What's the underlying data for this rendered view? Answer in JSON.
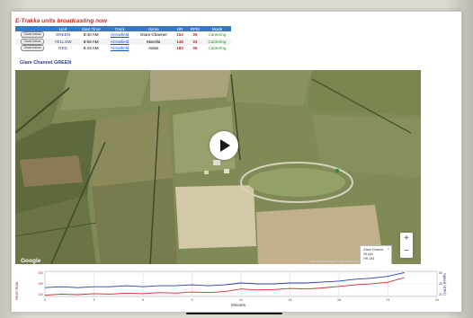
{
  "title": "E-Trakka units broadcasting now",
  "table": {
    "headers": [
      "Unit",
      "Start Time",
      "Track",
      "Horse",
      "HR",
      "RPM",
      "Mode"
    ],
    "rows": [
      {
        "button": "Show below",
        "unit": "GREEN",
        "start": "8:40 AM",
        "track": "Arrowfield",
        "horse": "Glare Channel",
        "hr": "154",
        "rpm": "35",
        "mode": "Cantering"
      },
      {
        "button": "Show below",
        "unit": "YELLOW",
        "start": "8:56 AM",
        "track": "Arrowfield",
        "horse": "Marella",
        "hr": "148",
        "rpm": "33",
        "mode": "Cantering"
      },
      {
        "button": "Show below",
        "unit": "RED",
        "start": "8:43 AM",
        "track": "Arrowfield",
        "horse": "Adios",
        "hr": "183",
        "rpm": "36",
        "mode": "Cantering"
      }
    ]
  },
  "channel_label": "Glare Channel GREEN",
  "map": {
    "info_lines": [
      "Glare Channe",
      "35 kph",
      "HR 154"
    ],
    "google": "Google",
    "credits": "Map data ©2019 Imagery ©2019 Terms of Use",
    "zoom_in": "+",
    "zoom_out": "−"
  },
  "chart": {
    "ylabel_left": "Heart Rate",
    "ylabel_right": "Speed (KPH)",
    "xlabel": "Minutes"
  },
  "chart_data": {
    "type": "line",
    "x": [
      0,
      1,
      2,
      3,
      4,
      5,
      6,
      7,
      8,
      9,
      10,
      11,
      12,
      13,
      14,
      15,
      16,
      17,
      18,
      19,
      20,
      21,
      22,
      23,
      24
    ],
    "xticks": [
      "0",
      "3",
      "6",
      "9",
      "12",
      "15",
      "18",
      "21",
      "24"
    ],
    "yticks_left": [
      "200",
      "150",
      "100"
    ],
    "yticks_right": [
      "35",
      "28",
      "21"
    ],
    "xlabel": "Minutes",
    "ylabel": "Heart Rate",
    "ylabel_right": "Speed (KPH)",
    "xlim": [
      0,
      24
    ],
    "series": [
      {
        "name": "Heart Rate",
        "color": "#d42a2a",
        "values": [
          118,
          120,
          119,
          121,
          120,
          122,
          121,
          123,
          122,
          124,
          123,
          125,
          130,
          128,
          129,
          131,
          130,
          132,
          135,
          138,
          140,
          143,
          152,
          0,
          0
        ],
        "length": 23
      },
      {
        "name": "Speed (KPH)",
        "color": "#2a3ca8",
        "values": [
          18,
          19,
          18,
          19,
          19,
          20,
          19,
          20,
          20,
          21,
          20,
          21,
          23,
          22,
          22,
          23,
          23,
          24,
          25,
          27,
          28,
          30,
          34,
          0,
          0
        ],
        "length": 23
      }
    ]
  }
}
